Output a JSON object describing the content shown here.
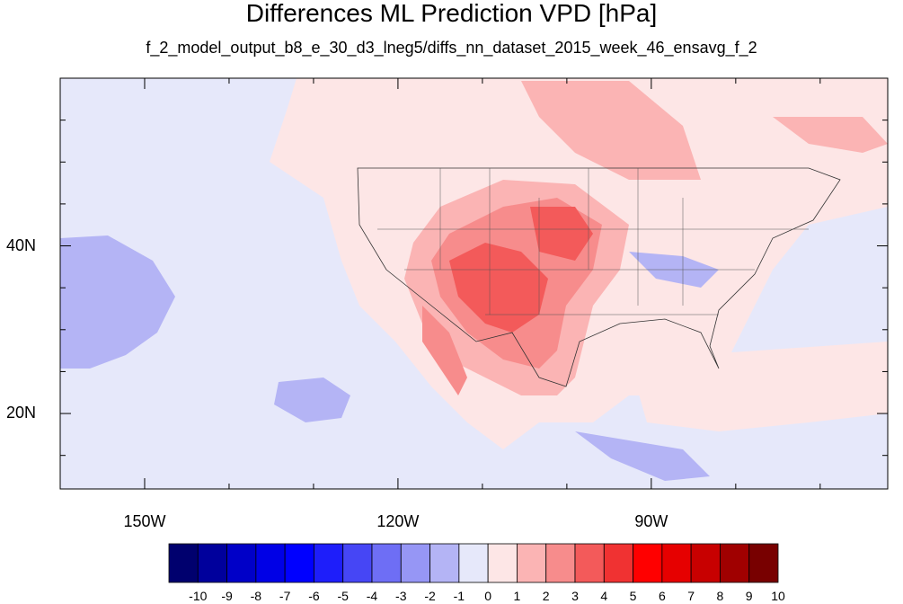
{
  "figure": {
    "title": "Differences ML Prediction VPD [hPa]",
    "subtitle": "f_2_model_output_b8_e_30_d3_lneg5/diffs_nn_dataset_2015_week_46_ensavg_f_2"
  },
  "map": {
    "lon_range": [
      -160,
      -62
    ],
    "lat_range": [
      11,
      60
    ],
    "lon_ticks": [
      "150W",
      "120W",
      "90W"
    ],
    "lat_ticks": [
      "40N",
      "20N"
    ],
    "background_color": "#e6e8fa"
  },
  "colorbar": {
    "labels": [
      "-10",
      "-9",
      "-8",
      "-7",
      "-6",
      "-5",
      "-4",
      "-3",
      "-2",
      "-1",
      "0",
      "1",
      "2",
      "3",
      "4",
      "5",
      "6",
      "7",
      "8",
      "9",
      "10"
    ],
    "colors": [
      "#00006e",
      "#00009c",
      "#0000c8",
      "#0000e6",
      "#0000ff",
      "#1e1efa",
      "#4646f5",
      "#6e6ef5",
      "#9696f5",
      "#b4b4f5",
      "#e6e8fa",
      "#fde6e6",
      "#fbb4b4",
      "#f78c8c",
      "#f35a5a",
      "#f03232",
      "#ff0000",
      "#e60000",
      "#c80000",
      "#a00000",
      "#780000"
    ]
  }
}
